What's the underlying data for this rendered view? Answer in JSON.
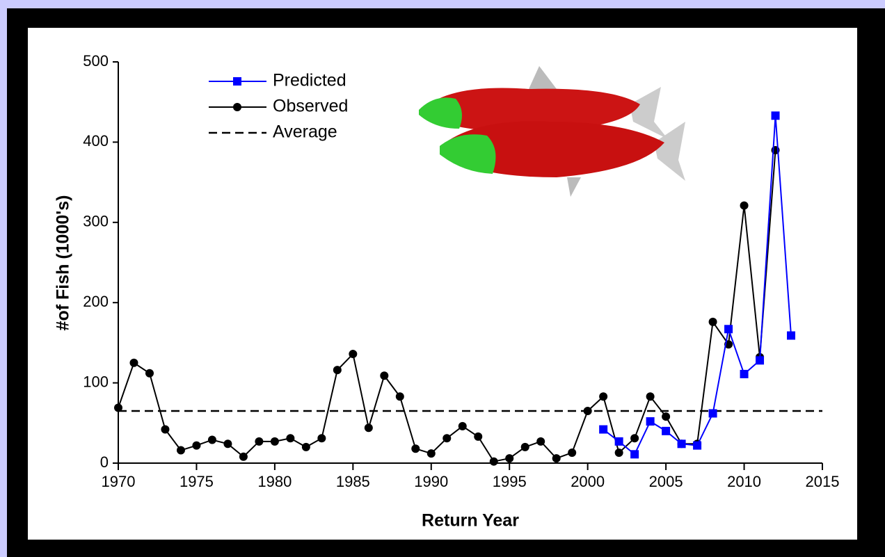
{
  "chart_data": {
    "type": "line",
    "x_label": "Return Year",
    "y_label": "#of Fish (1000's)",
    "xlim": [
      1970,
      2015
    ],
    "xticks": [
      1970,
      1975,
      1980,
      1985,
      1990,
      1995,
      2000,
      2005,
      2010,
      2015
    ],
    "ylim": [
      0,
      500
    ],
    "yticks": [
      0,
      100,
      200,
      300,
      400,
      500
    ],
    "series": [
      {
        "name": "Predicted",
        "color": "#0000ff",
        "marker": "square",
        "x": [
          2001,
          2002,
          2003,
          2004,
          2005,
          2006,
          2007,
          2008,
          2009,
          2010,
          2011,
          2012,
          2013
        ],
        "values": [
          42,
          27,
          11,
          52,
          40,
          24,
          22,
          62,
          167,
          111,
          128,
          433,
          159
        ]
      },
      {
        "name": "Observed",
        "color": "#000000",
        "marker": "circle",
        "x": [
          1970,
          1971,
          1972,
          1973,
          1974,
          1975,
          1976,
          1977,
          1978,
          1979,
          1980,
          1981,
          1982,
          1983,
          1984,
          1985,
          1986,
          1987,
          1988,
          1989,
          1990,
          1991,
          1992,
          1993,
          1994,
          1995,
          1996,
          1997,
          1998,
          1999,
          2000,
          2001,
          2002,
          2003,
          2004,
          2005,
          2006,
          2007,
          2008,
          2009,
          2010,
          2011,
          2012
        ],
        "values": [
          69,
          125,
          112,
          42,
          16,
          22,
          29,
          24,
          8,
          27,
          27,
          31,
          20,
          31,
          116,
          136,
          44,
          109,
          83,
          18,
          12,
          31,
          46,
          33,
          2,
          6,
          20,
          27,
          6,
          13,
          65,
          83,
          13,
          31,
          83,
          58,
          24,
          24,
          176,
          148,
          321,
          132,
          390
        ]
      }
    ],
    "average": {
      "name": "Average",
      "value": 65,
      "color": "#000000"
    }
  }
}
